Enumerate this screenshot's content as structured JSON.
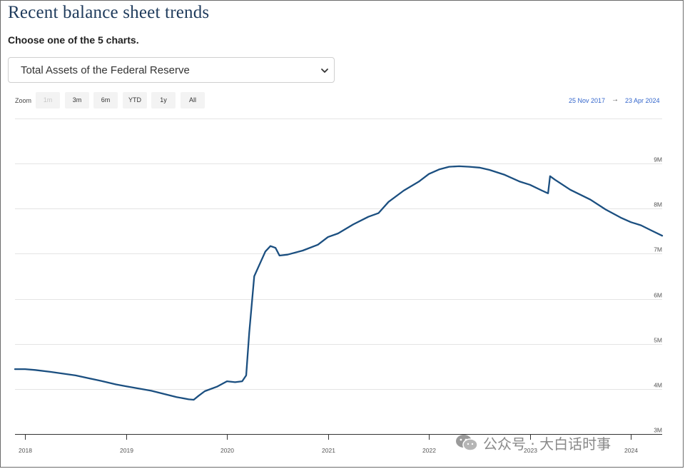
{
  "page": {
    "title": "Recent balance sheet trends",
    "subtitle": "Choose one of the 5 charts."
  },
  "selector": {
    "selected": "Total Assets of the Federal Reserve"
  },
  "zoom": {
    "label": "Zoom",
    "buttons": [
      {
        "label": "1m",
        "disabled": true
      },
      {
        "label": "3m",
        "disabled": false
      },
      {
        "label": "6m",
        "disabled": false
      },
      {
        "label": "YTD",
        "disabled": false
      },
      {
        "label": "1y",
        "disabled": false
      },
      {
        "label": "All",
        "disabled": false
      }
    ]
  },
  "range": {
    "from": "25 Nov 2017",
    "arrow": "→",
    "to": "23 Apr 2024"
  },
  "watermark": {
    "text": "公众号 · 大白话时事"
  },
  "colors": {
    "line": "#1b4f80",
    "title": "#1f3b5c",
    "range_text": "#3366cc",
    "grid": "#e4e4e4"
  },
  "chart_data": {
    "type": "line",
    "title": "",
    "xlabel": "",
    "ylabel": "",
    "xlim": [
      2017.9,
      2024.31
    ],
    "ylim": [
      3,
      10
    ],
    "y_unit": "M",
    "y_ticks": [
      {
        "value": 3,
        "label": "3M"
      },
      {
        "value": 4,
        "label": "4M"
      },
      {
        "value": 5,
        "label": "5M"
      },
      {
        "value": 6,
        "label": "6M"
      },
      {
        "value": 7,
        "label": "7M"
      },
      {
        "value": 8,
        "label": "8M"
      },
      {
        "value": 9,
        "label": "9M"
      }
    ],
    "x_ticks": [
      {
        "value": 2018,
        "label": "2018"
      },
      {
        "value": 2019,
        "label": "2019"
      },
      {
        "value": 2020,
        "label": "2020"
      },
      {
        "value": 2021,
        "label": "2021"
      },
      {
        "value": 2022,
        "label": "2022"
      },
      {
        "value": 2023,
        "label": "2023"
      },
      {
        "value": 2024,
        "label": "2024"
      }
    ],
    "grid": true,
    "series": [
      {
        "values": [
          [
            2017.9,
            4.44
          ],
          [
            2018.0,
            4.44
          ],
          [
            2018.1,
            4.42
          ],
          [
            2018.25,
            4.38
          ],
          [
            2018.5,
            4.3
          ],
          [
            2018.75,
            4.18
          ],
          [
            2018.9,
            4.1
          ],
          [
            2019.0,
            4.06
          ],
          [
            2019.25,
            3.96
          ],
          [
            2019.5,
            3.82
          ],
          [
            2019.62,
            3.77
          ],
          [
            2019.67,
            3.76
          ],
          [
            2019.72,
            3.85
          ],
          [
            2019.78,
            3.95
          ],
          [
            2019.9,
            4.05
          ],
          [
            2020.0,
            4.17
          ],
          [
            2020.08,
            4.15
          ],
          [
            2020.15,
            4.17
          ],
          [
            2020.19,
            4.3
          ],
          [
            2020.22,
            5.25
          ],
          [
            2020.27,
            6.5
          ],
          [
            2020.32,
            6.75
          ],
          [
            2020.38,
            7.05
          ],
          [
            2020.43,
            7.17
          ],
          [
            2020.48,
            7.13
          ],
          [
            2020.52,
            6.96
          ],
          [
            2020.6,
            6.98
          ],
          [
            2020.75,
            7.07
          ],
          [
            2020.9,
            7.2
          ],
          [
            2021.0,
            7.37
          ],
          [
            2021.1,
            7.45
          ],
          [
            2021.25,
            7.65
          ],
          [
            2021.4,
            7.82
          ],
          [
            2021.5,
            7.9
          ],
          [
            2021.6,
            8.15
          ],
          [
            2021.75,
            8.4
          ],
          [
            2021.9,
            8.6
          ],
          [
            2022.0,
            8.77
          ],
          [
            2022.1,
            8.87
          ],
          [
            2022.2,
            8.93
          ],
          [
            2022.3,
            8.94
          ],
          [
            2022.4,
            8.93
          ],
          [
            2022.5,
            8.91
          ],
          [
            2022.6,
            8.86
          ],
          [
            2022.75,
            8.75
          ],
          [
            2022.9,
            8.6
          ],
          [
            2023.0,
            8.53
          ],
          [
            2023.12,
            8.4
          ],
          [
            2023.18,
            8.34
          ],
          [
            2023.2,
            8.72
          ],
          [
            2023.25,
            8.64
          ],
          [
            2023.4,
            8.42
          ],
          [
            2023.6,
            8.2
          ],
          [
            2023.75,
            7.98
          ],
          [
            2023.9,
            7.8
          ],
          [
            2024.0,
            7.7
          ],
          [
            2024.1,
            7.63
          ],
          [
            2024.2,
            7.52
          ],
          [
            2024.31,
            7.4
          ]
        ]
      }
    ]
  }
}
